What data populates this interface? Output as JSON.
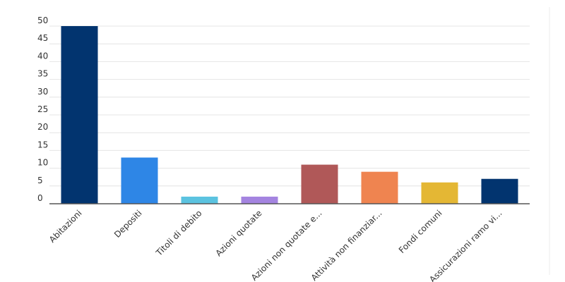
{
  "chart_data": {
    "type": "bar",
    "categories": [
      "Abitazioni",
      "Depositi",
      "Titoli di debito",
      "Azioni quotate",
      "Azioni non quotate e...",
      "Attività non finanziar...",
      "Fondi comuni",
      "Assicurazioni ramo vi..."
    ],
    "values": [
      50,
      13,
      2,
      2,
      11,
      9,
      6,
      7
    ],
    "colors": [
      "#02346f",
      "#2e86e6",
      "#5bc3e0",
      "#a484e0",
      "#b05858",
      "#ef8450",
      "#e4b734",
      "#02346f"
    ],
    "ylim": [
      0,
      50
    ],
    "yticks": [
      0,
      5,
      10,
      15,
      20,
      25,
      30,
      35,
      40,
      45,
      50
    ],
    "grid": true
  }
}
